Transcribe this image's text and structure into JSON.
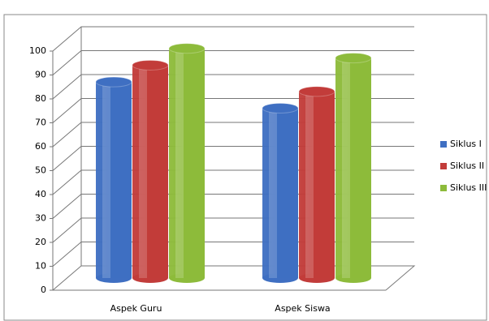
{
  "chart_data": {
    "type": "bar3d-cylinder",
    "categories": [
      "Aspek Guru",
      "Aspek Siswa"
    ],
    "series": [
      {
        "name": "Siklus I",
        "color": "#3f6fc2",
        "values": [
          82,
          71
        ]
      },
      {
        "name": "Siklus II",
        "color": "#c23c3a",
        "values": [
          89,
          78
        ]
      },
      {
        "name": "Siklus III",
        "color": "#8dbb3b",
        "values": [
          96,
          92
        ]
      }
    ],
    "ylim": [
      0,
      100
    ],
    "yticks": [
      0,
      10,
      20,
      30,
      40,
      50,
      60,
      70,
      80,
      90,
      100
    ],
    "grid": true,
    "legend": "right"
  }
}
